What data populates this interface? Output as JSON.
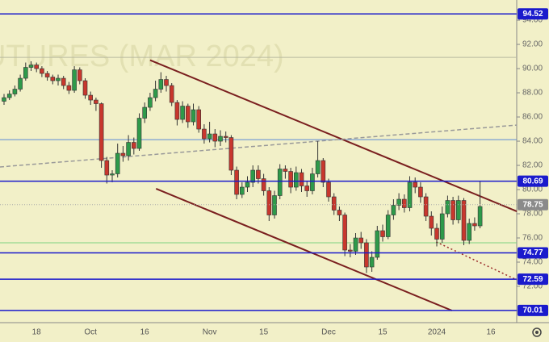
{
  "chart_data": {
    "type": "candlestick",
    "watermark": "UTURES (MAR 2024)",
    "categories": [
      null,
      null,
      null,
      null,
      null,
      null,
      "18",
      null,
      null,
      null,
      null,
      null,
      null,
      null,
      null,
      null,
      "Oct",
      null,
      null,
      null,
      null,
      null,
      null,
      null,
      null,
      null,
      "16",
      null,
      null,
      null,
      null,
      null,
      null,
      null,
      null,
      null,
      null,
      null,
      "Nov",
      null,
      null,
      null,
      null,
      null,
      null,
      null,
      null,
      null,
      "15",
      null,
      null,
      null,
      null,
      null,
      null,
      null,
      null,
      null,
      null,
      null,
      "Dec",
      null,
      null,
      null,
      null,
      null,
      null,
      null,
      null,
      null,
      "15",
      null,
      null,
      null,
      null,
      null,
      null,
      null,
      null,
      null,
      "2024",
      null,
      null,
      null,
      null,
      null,
      null,
      null,
      null,
      null,
      "16",
      null
    ],
    "open": [
      87.3,
      87.6,
      87.9,
      88.3,
      89.2,
      90.1,
      90.3,
      90.0,
      89.6,
      89.3,
      89.0,
      89.2,
      88.6,
      88.2,
      89.9,
      89.0,
      87.8,
      87.4,
      87.1,
      82.4,
      81.2,
      81.3,
      83.0,
      82.8,
      83.9,
      83.4,
      85.9,
      86.8,
      87.6,
      88.3,
      89.1,
      88.6,
      87.2,
      85.8,
      86.9,
      85.6,
      86.6,
      85.0,
      84.2,
      84.6,
      84.0,
      84.4,
      84.3,
      81.6,
      79.6,
      80.2,
      80.6,
      81.6,
      80.9,
      79.9,
      77.9,
      79.5,
      81.7,
      81.5,
      80.2,
      81.4,
      80.3,
      79.9,
      81.3,
      82.4,
      80.6,
      79.4,
      78.3,
      77.9,
      75.0,
      74.9,
      76.0,
      75.6,
      73.6,
      74.4,
      76.6,
      76.1,
      77.9,
      78.7,
      79.2,
      78.5,
      80.6,
      80.2,
      79.4,
      77.8,
      76.8,
      75.9,
      78.0,
      79.1,
      77.5,
      79.1,
      75.8,
      77.2,
      77.0,
      null,
      null,
      null
    ],
    "high": [
      87.9,
      88.2,
      88.6,
      89.5,
      90.5,
      90.6,
      90.5,
      90.2,
      89.8,
      89.5,
      89.5,
      89.4,
      88.9,
      90.2,
      90.1,
      89.2,
      88.1,
      87.6,
      87.2,
      82.7,
      81.6,
      83.8,
      83.6,
      84.5,
      84.3,
      86.3,
      87.2,
      88.0,
      89.0,
      89.7,
      89.4,
      88.8,
      87.4,
      87.3,
      87.1,
      87.1,
      86.9,
      85.4,
      85.6,
      85.0,
      84.9,
      84.8,
      84.5,
      81.9,
      80.6,
      81.1,
      82.0,
      82.0,
      81.3,
      80.2,
      79.9,
      82.1,
      82.0,
      81.8,
      81.9,
      81.7,
      80.7,
      81.8,
      84.0,
      82.6,
      80.9,
      79.7,
      78.6,
      78.1,
      75.5,
      76.4,
      76.5,
      75.9,
      74.9,
      77.0,
      77.1,
      78.3,
      79.2,
      79.7,
      79.6,
      81.1,
      81.0,
      80.6,
      79.7,
      78.2,
      77.2,
      78.6,
      79.5,
      79.4,
      79.5,
      79.3,
      77.6,
      77.7,
      80.7,
      null,
      null,
      null
    ],
    "low": [
      87.0,
      87.4,
      87.7,
      88.1,
      89.0,
      89.8,
      89.7,
      89.3,
      89.0,
      88.7,
      88.6,
      88.3,
      87.9,
      88.0,
      88.7,
      87.5,
      87.0,
      86.5,
      81.8,
      80.5,
      80.6,
      81.0,
      82.3,
      82.4,
      82.9,
      83.2,
      85.5,
      86.5,
      87.3,
      88.0,
      88.1,
      86.9,
      85.3,
      85.5,
      85.1,
      85.3,
      84.7,
      83.8,
      83.9,
      83.5,
      83.6,
      83.9,
      81.2,
      79.2,
      79.3,
      79.8,
      80.2,
      80.5,
      79.5,
      77.4,
      77.6,
      79.2,
      80.9,
      79.7,
      79.9,
      79.8,
      79.4,
      79.6,
      81.0,
      80.2,
      79.0,
      77.9,
      77.4,
      74.5,
      74.4,
      74.6,
      75.1,
      73.1,
      73.2,
      74.2,
      75.7,
      75.9,
      77.5,
      78.3,
      78.1,
      78.2,
      79.7,
      78.9,
      77.4,
      76.2,
      75.3,
      75.6,
      77.7,
      77.1,
      77.2,
      75.4,
      75.5,
      76.6,
      76.8,
      null,
      null,
      null
    ],
    "close": [
      87.6,
      87.9,
      88.3,
      89.2,
      90.1,
      90.3,
      90.0,
      89.6,
      89.3,
      89.0,
      89.2,
      88.6,
      88.2,
      89.9,
      89.0,
      87.8,
      87.4,
      87.1,
      82.4,
      81.2,
      81.3,
      83.0,
      82.8,
      83.9,
      83.4,
      85.9,
      86.8,
      87.6,
      88.3,
      89.1,
      88.6,
      87.2,
      85.8,
      86.9,
      85.6,
      86.6,
      85.0,
      84.2,
      84.6,
      84.0,
      84.4,
      84.3,
      81.6,
      79.6,
      80.2,
      80.6,
      81.6,
      80.9,
      79.9,
      77.9,
      79.5,
      81.7,
      81.5,
      80.2,
      81.4,
      80.3,
      79.9,
      81.3,
      82.4,
      80.6,
      79.4,
      78.3,
      77.9,
      75.0,
      74.9,
      76.0,
      75.6,
      73.6,
      74.4,
      76.6,
      76.1,
      77.9,
      78.7,
      79.2,
      78.5,
      80.6,
      80.2,
      79.4,
      77.8,
      76.8,
      75.9,
      78.0,
      79.1,
      77.5,
      79.1,
      75.8,
      77.2,
      77.0,
      78.6,
      null,
      null,
      null
    ],
    "up_color": "#2e9a4a",
    "down_color": "#c8372d",
    "wick_color": "#333333",
    "ylim": [
      69,
      95.67
    ],
    "yticks": [
      {
        "value": 70,
        "label": "70.00"
      },
      {
        "value": 72,
        "label": "72.00"
      },
      {
        "value": 74,
        "label": "74.00"
      },
      {
        "value": 76,
        "label": "76.00"
      },
      {
        "value": 78,
        "label": "78.00"
      },
      {
        "value": 80,
        "label": "80.00"
      },
      {
        "value": 82,
        "label": "82.00"
      },
      {
        "value": 84,
        "label": "84.00"
      },
      {
        "value": 86,
        "label": "86.00"
      },
      {
        "value": 88,
        "label": "88.00"
      },
      {
        "value": 90,
        "label": "90.00"
      },
      {
        "value": 92,
        "label": "92.00"
      },
      {
        "value": 94,
        "label": "94.00"
      }
    ],
    "levels": [
      94.52,
      80.69,
      74.77,
      72.59,
      70.01
    ],
    "level_color": "#1a1acc",
    "last_price": 78.75,
    "minor_levels": [
      {
        "value": 90.93,
        "color": "#b9b9a0"
      },
      {
        "value": 84.13,
        "color": "#5a8ad6"
      },
      {
        "value": 75.6,
        "color": "#7fd27f"
      }
    ],
    "trend_lines": [
      {
        "x": [
          27,
          94.8
        ],
        "y": [
          90.7,
          78.2
        ],
        "color": "#7a1f1f",
        "style": "solid"
      },
      {
        "x": [
          28.1,
          82.8
        ],
        "y": [
          80.07,
          70.0
        ],
        "color": "#7a1f1f",
        "style": "solid"
      },
      {
        "x": [
          -0.75,
          94.8
        ],
        "y": [
          81.87,
          85.33
        ],
        "color": "#999999",
        "style": "dashed"
      },
      {
        "x": [
          79.9,
          94.8
        ],
        "y": [
          75.67,
          72.53
        ],
        "color": "#9a2a2a",
        "style": "dotted"
      }
    ]
  }
}
